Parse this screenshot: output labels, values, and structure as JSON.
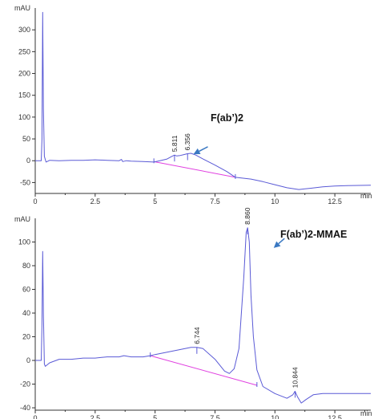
{
  "chart_data": [
    {
      "type": "line",
      "yunit": "mAU",
      "xunit": "min",
      "xlim": [
        0,
        14
      ],
      "ylim": [
        -75,
        350
      ],
      "xticks": [
        0,
        2.5,
        5,
        7.5,
        10,
        12.5
      ],
      "xtick_labels": [
        "0",
        "2.5",
        "5",
        "7.5",
        "10",
        "12.5"
      ],
      "yticks": [
        -50,
        0,
        50,
        100,
        150,
        200,
        250,
        300
      ],
      "ytick_labels": [
        "-50",
        "0",
        "50",
        "100",
        "150",
        "200",
        "250",
        "300"
      ],
      "colors": {
        "trace": "#5a5ad6",
        "baseline": "#e040e0",
        "arrow": "#3a78c2",
        "axis": "#333333"
      },
      "annotation": {
        "text": "F(ab’)2",
        "arrow_from": [
          7.2,
          32
        ],
        "arrow_to": [
          6.6,
          15
        ]
      },
      "peaks": [
        {
          "label": "5.811",
          "x": 5.811,
          "y": 13
        },
        {
          "label": "6.356",
          "x": 6.356,
          "y": 16
        }
      ],
      "baseline": [
        [
          4.95,
          -2
        ],
        [
          8.35,
          -38
        ]
      ],
      "trace": [
        [
          0,
          0
        ],
        [
          0.25,
          0
        ],
        [
          0.28,
          50
        ],
        [
          0.31,
          340
        ],
        [
          0.34,
          120
        ],
        [
          0.38,
          10
        ],
        [
          0.45,
          -3
        ],
        [
          0.6,
          1
        ],
        [
          1,
          0
        ],
        [
          1.5,
          1
        ],
        [
          2,
          1
        ],
        [
          2.5,
          2
        ],
        [
          3,
          1
        ],
        [
          3.5,
          0
        ],
        [
          3.6,
          3
        ],
        [
          3.65,
          -2
        ],
        [
          3.8,
          0
        ],
        [
          4,
          -1
        ],
        [
          4.5,
          -2
        ],
        [
          4.95,
          -3
        ],
        [
          5.2,
          0
        ],
        [
          5.5,
          4
        ],
        [
          5.7,
          10
        ],
        [
          5.81,
          13
        ],
        [
          5.9,
          11
        ],
        [
          6.05,
          12
        ],
        [
          6.2,
          14
        ],
        [
          6.35,
          16
        ],
        [
          6.5,
          17
        ],
        [
          6.7,
          13
        ],
        [
          7,
          4
        ],
        [
          7.5,
          -10
        ],
        [
          8,
          -25
        ],
        [
          8.35,
          -38
        ],
        [
          9,
          -42
        ],
        [
          9.5,
          -48
        ],
        [
          10,
          -55
        ],
        [
          10.5,
          -62
        ],
        [
          11,
          -66
        ],
        [
          11.5,
          -63
        ],
        [
          12,
          -60
        ],
        [
          12.5,
          -58
        ],
        [
          13,
          -57
        ],
        [
          14,
          -56
        ]
      ]
    },
    {
      "type": "line",
      "yunit": "mAU",
      "xunit": "min",
      "xlim": [
        0,
        14
      ],
      "ylim": [
        -42,
        120
      ],
      "xticks": [
        0,
        2.5,
        5,
        7.5,
        10,
        12.5
      ],
      "xtick_labels": [
        "0",
        "2.5",
        "5",
        "7.5",
        "10",
        "12.5"
      ],
      "yticks": [
        -40,
        -20,
        0,
        20,
        40,
        60,
        80,
        100
      ],
      "ytick_labels": [
        "-40",
        "-20",
        "0",
        "20",
        "40",
        "60",
        "80",
        "100"
      ],
      "colors": {
        "trace": "#5a5ad6",
        "baseline": "#e040e0",
        "arrow": "#3a78c2",
        "axis": "#333333"
      },
      "annotation": {
        "text": "F(ab’)2-MMAE",
        "arrow_from": [
          10.4,
          103
        ],
        "arrow_to": [
          9.95,
          95
        ]
      },
      "peaks": [
        {
          "label": "6.744",
          "x": 6.744,
          "y": 11
        },
        {
          "label": "8.860",
          "x": 8.86,
          "y": 112
        },
        {
          "label": "10.844",
          "x": 10.844,
          "y": -26
        }
      ],
      "baseline": [
        [
          4.8,
          4
        ],
        [
          9.25,
          -21
        ]
      ],
      "trace": [
        [
          0,
          0
        ],
        [
          0.25,
          0
        ],
        [
          0.28,
          30
        ],
        [
          0.31,
          92
        ],
        [
          0.34,
          40
        ],
        [
          0.38,
          -3
        ],
        [
          0.42,
          -5
        ],
        [
          0.6,
          -2
        ],
        [
          1,
          1
        ],
        [
          1.5,
          1
        ],
        [
          2,
          2
        ],
        [
          2.5,
          2
        ],
        [
          3,
          3
        ],
        [
          3.5,
          3
        ],
        [
          3.7,
          4
        ],
        [
          4,
          3
        ],
        [
          4.5,
          3
        ],
        [
          4.8,
          4
        ],
        [
          5,
          5
        ],
        [
          5.5,
          7
        ],
        [
          6,
          9
        ],
        [
          6.5,
          11
        ],
        [
          6.75,
          11
        ],
        [
          7,
          10
        ],
        [
          7.5,
          1
        ],
        [
          7.9,
          -9
        ],
        [
          8.1,
          -11
        ],
        [
          8.3,
          -7
        ],
        [
          8.5,
          10
        ],
        [
          8.7,
          70
        ],
        [
          8.8,
          108
        ],
        [
          8.86,
          112
        ],
        [
          8.93,
          100
        ],
        [
          9,
          55
        ],
        [
          9.1,
          20
        ],
        [
          9.25,
          -8
        ],
        [
          9.5,
          -22
        ],
        [
          10,
          -28
        ],
        [
          10.5,
          -32
        ],
        [
          10.75,
          -29
        ],
        [
          10.84,
          -26
        ],
        [
          10.95,
          -31
        ],
        [
          11.1,
          -36
        ],
        [
          11.3,
          -33
        ],
        [
          11.6,
          -29
        ],
        [
          12,
          -28
        ],
        [
          12.5,
          -28
        ],
        [
          13,
          -28
        ],
        [
          14,
          -28
        ]
      ]
    }
  ]
}
